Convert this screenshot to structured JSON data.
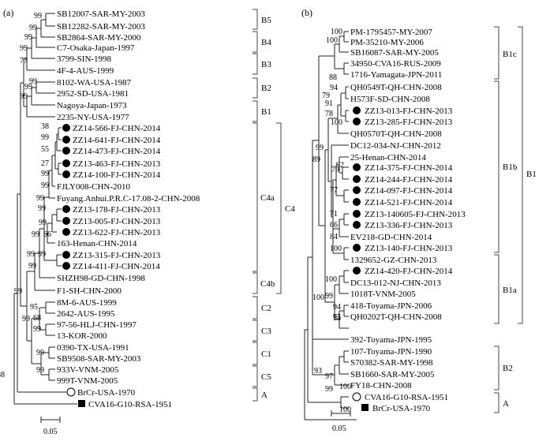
{
  "panel_a": {
    "label": "(a)",
    "scale_label": "0.05",
    "taxa": [
      "SB12007-SAR-MY-2003",
      "SB12282-SAR-MY-2003",
      "SB2864-SAR-MY-2000",
      "C7-Osaka-Japan-1997",
      "3799-SIN-1998",
      "4F-4-AUS-1999",
      "8102-WA-USA-1987",
      "2952-SD-USA-1981",
      "Nagoya-Japan-1973",
      "2235-NY-USA-1977",
      "ZZ14-566-FJ-CHN-2014",
      "ZZ14-641-FJ-CHN-2014",
      "ZZ14-473-FJ-CHN-2014",
      "ZZ13-463-FJ-CHN-2013",
      "ZZ14-100-FJ-CHN-2014",
      "FJLY008-CHN-2010",
      "Fuyang.Anhui.P.R.C-17.08-2-CHN-2008",
      "ZZ13-178-FJ-CHN-2013",
      "ZZ13-005-FJ-CHN-2013",
      "ZZ13-622-FJ-CHN-2013",
      "163-Henan-CHN-2014",
      "ZZ13-315-FJ-CHN-2013",
      "ZZ14-411-FJ-CHN-2014",
      "SHZH98-GD-CHN-1998",
      "F1-SH-CHN-2000",
      "8M-6-AUS-1999",
      "2642-AUS-1995",
      "97-56-HLJ-CHN-1997",
      "13-KOR-2000",
      "0390-TX-USA-1991",
      "SB9508-SAR-MY-2003",
      "933V-VNM-2005",
      "999T-VNM-2005",
      "BrCr-USA-1970",
      "CVA16-G10-RSA-1951"
    ],
    "bootstrap": [
      "99",
      "99",
      "99",
      "99",
      "77",
      "99",
      "99",
      "99",
      "38",
      "99",
      "55",
      "27",
      "99",
      "99",
      "99",
      "99",
      "66",
      "99",
      "99",
      "99",
      "99",
      "99",
      "95",
      "99",
      "68",
      "99",
      "99",
      "99",
      "99",
      "88"
    ],
    "groups": [
      "B5",
      "B4",
      "B3",
      "B2",
      "B1",
      "C4a",
      "C4",
      "C4b",
      "C2",
      "C3",
      "C1",
      "C5",
      "A"
    ]
  },
  "panel_b": {
    "label": "(b)",
    "scale_label": "0.05",
    "taxa": [
      "PM-1795457-MY-2007",
      "PM-35210-MY-2006",
      "SB16087-SAR-MY-2005",
      "34950-CVA16-RUS-2009",
      "1716-Yamagata-JPN-2011",
      "QH0549T-QH-CHN-2008",
      "H573F-SD-CHN-2008",
      "ZZ13-013-FJ-CHN-2013",
      "ZZ13-285-FJ-CHN-2013",
      "QH0570T-QH-CHN-2008",
      "DC12-034-NJ-CHN-2012",
      "25-Henan-CHN-2014",
      "ZZ14-375-FJ-CHN-2014",
      "ZZ14-244-FJ-CHN-2014",
      "ZZ14-097-FJ-CHN-2014",
      "ZZ14-521-FJ-CHN-2014",
      "ZZ13-140605-FJ-CHN-2013",
      "ZZ13-336-FJ-CHN-2013",
      "EV218-GD-CHN-2014",
      "ZZ13-140-FJ-CHN-2013",
      "1329652-GZ-CHN-2013",
      "ZZ14-420-FJ-CHN-2014",
      "DC13-012-NJ-CHN-2013",
      "1018T-VNM-2005",
      "418-Toyama-JPN-2006",
      "QH0202T-QH-CHN-2008",
      "392-Toyama-JPN-1995",
      "107-Toyama-JPN-1990",
      "S70382-SAR-MY-1998",
      "SB1660-SAR-MY-2005",
      "FY18-CHN-2008",
      "CVA16-G10-RSA-1951",
      "BrCr-USA-1970"
    ],
    "bootstrap": [
      "100",
      "100",
      "88",
      "94",
      "79",
      "91",
      "78",
      "100",
      "99",
      "89",
      "92",
      "79",
      "77",
      "71",
      "66",
      "84",
      "100",
      "100",
      "100",
      "99",
      "94",
      "94",
      "75",
      "93",
      "97",
      "99",
      "100",
      "100"
    ],
    "groups": [
      "B1c",
      "B1b",
      "B1",
      "B1a",
      "B2",
      "A"
    ]
  }
}
